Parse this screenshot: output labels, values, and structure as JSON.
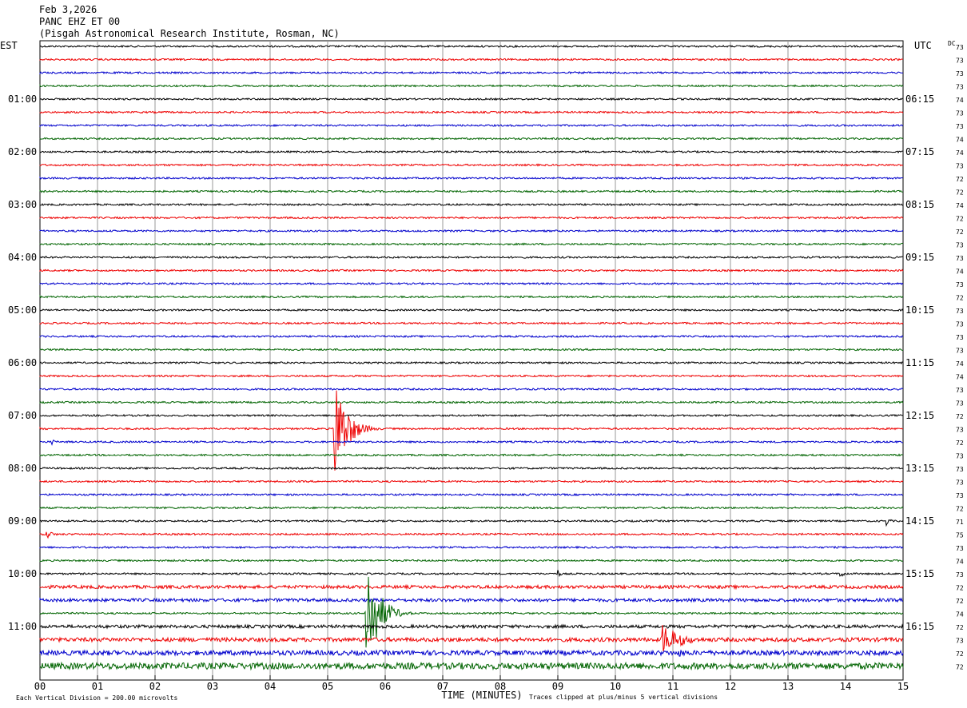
{
  "header": {
    "date": "Feb 3,2026",
    "station": "PANC EHZ ET 00",
    "institution": "(Pisgah Astronomical Research Institute, Rosman, NC)"
  },
  "chart_data": {
    "type": "helicorder",
    "left_timezone": "EST",
    "right_timezone": "UTC",
    "dc_label": "DC",
    "xlabel": "TIME (MINUTES)",
    "xlim": [
      0,
      15
    ],
    "x_ticks": [
      "00",
      "01",
      "02",
      "03",
      "04",
      "05",
      "06",
      "07",
      "08",
      "09",
      "10",
      "11",
      "12",
      "13",
      "14",
      "15"
    ],
    "trace_colors": [
      "#000000",
      "#ee0000",
      "#0000cc",
      "#006400"
    ],
    "trace_count": 48,
    "est_hour_labels": [
      "01:00",
      "02:00",
      "03:00",
      "04:00",
      "05:00",
      "06:00",
      "07:00",
      "08:00",
      "09:00",
      "10:00",
      "11:00"
    ],
    "utc_hour_labels": [
      "06:15",
      "07:15",
      "08:15",
      "09:15",
      "10:15",
      "11:15",
      "12:15",
      "13:15",
      "14:15",
      "15:15",
      "16:15"
    ],
    "dc_values": [
      "73",
      "73",
      "73",
      "73",
      "74",
      "73",
      "73",
      "74",
      "74",
      "73",
      "72",
      "72",
      "74",
      "72",
      "72",
      "73",
      "73",
      "74",
      "73",
      "72",
      "73",
      "73",
      "73",
      "73",
      "74",
      "74",
      "73",
      "73",
      "72",
      "73",
      "72",
      "73",
      "73",
      "73",
      "73",
      "72",
      "71",
      "75",
      "73",
      "74",
      "73",
      "72",
      "72",
      "74",
      "72",
      "73",
      "72",
      "72"
    ],
    "footer_left": "Each Vertical Division =  200.00 microvolts",
    "footer_right": "Traces clipped at plus/minus 5 vertical divisions",
    "events": [
      {
        "trace": 29,
        "minute": 5.1,
        "amplitude": 80,
        "duration_min": 0.9
      },
      {
        "trace": 43,
        "minute": 5.65,
        "amplitude": 90,
        "duration_min": 0.9
      },
      {
        "trace": 45,
        "minute": 10.8,
        "amplitude": 22,
        "duration_min": 1.4
      },
      {
        "trace": 46,
        "minute": 11.1,
        "amplitude": 5,
        "duration_min": 1.5
      },
      {
        "trace": 30,
        "minute": 0.2,
        "amplitude": 6,
        "duration_min": 0.2
      },
      {
        "trace": 36,
        "minute": 14.7,
        "amplitude": 7,
        "duration_min": 0.3
      },
      {
        "trace": 37,
        "minute": 0.1,
        "amplitude": 7,
        "duration_min": 0.5
      },
      {
        "trace": 40,
        "minute": 13.9,
        "amplitude": 6,
        "duration_min": 0.4
      },
      {
        "trace": 40,
        "minute": 9.0,
        "amplitude": 6,
        "duration_min": 0.2
      }
    ],
    "noisy_traces": [
      {
        "trace": 47,
        "level": 4
      },
      {
        "trace": 46,
        "level": 3
      },
      {
        "trace": 45,
        "level": 2.5
      },
      {
        "trace": 41,
        "level": 2
      },
      {
        "trace": 42,
        "level": 2
      },
      {
        "trace": 44,
        "level": 2
      }
    ]
  }
}
